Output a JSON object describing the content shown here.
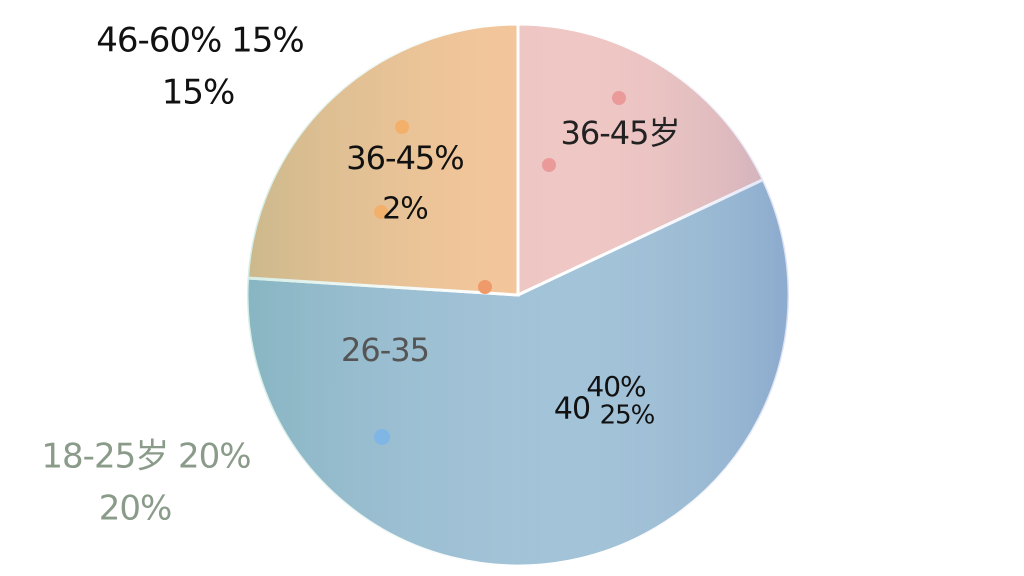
{
  "chart_data": {
    "type": "pie",
    "categories": [
      null,
      null,
      null
    ],
    "values": [
      18,
      58,
      24
    ],
    "colors": [
      "#efc7c4",
      "#a3c3d8",
      "#f4c79b"
    ],
    "annotations": [
      "46-60% 15%",
      "15%",
      "36-45%",
      "2%",
      "36-45岁",
      "26-35",
      "40%",
      "40",
      "25%",
      "18-25岁 20%",
      "20%"
    ]
  }
}
